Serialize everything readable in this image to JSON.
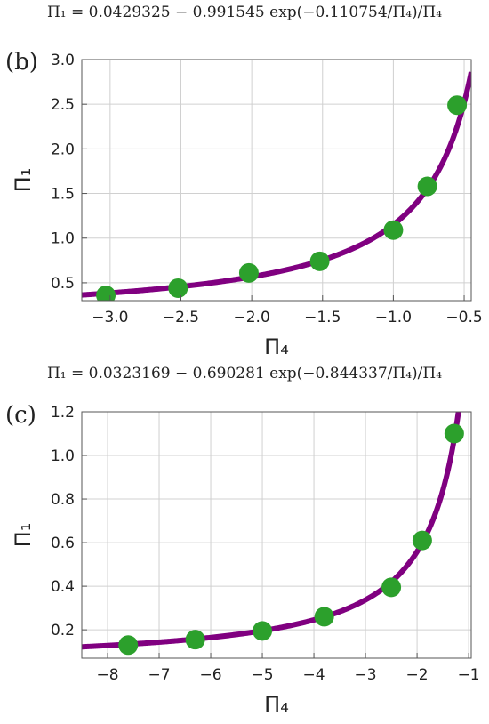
{
  "colors": {
    "curve": "#800080",
    "points": "#2ca02c",
    "grid": "#d0d0d0",
    "frame": "#555555"
  },
  "chart_data": [
    {
      "type": "scatter",
      "panel_label": "(b)",
      "title": "Π₁ = 0.0429325 − 0.991545 exp(−0.110754/Π₄)/Π₄",
      "xlabel": "Π₄",
      "ylabel": "Π₁",
      "xlim": [
        -3.2,
        -0.45
      ],
      "ylim": [
        0.3,
        3.0
      ],
      "xticks": [
        -3.0,
        -2.5,
        -2.0,
        -1.5,
        -1.0,
        -0.5
      ],
      "xtick_labels": [
        "−3.0",
        "−2.5",
        "−2.0",
        "−1.5",
        "−1.0",
        "−0.5"
      ],
      "yticks": [
        0.5,
        1.0,
        1.5,
        2.0,
        2.5,
        3.0
      ],
      "ytick_labels": [
        "0.5",
        "1.0",
        "1.5",
        "2.0",
        "2.5",
        "3.0"
      ],
      "grid": true,
      "fit": {
        "a": 0.0429325,
        "b": 0.991545,
        "c": 0.110754
      },
      "points": {
        "x": [
          -3.03,
          -2.52,
          -2.02,
          -1.52,
          -1.0,
          -0.76,
          -0.55
        ],
        "y": [
          0.36,
          0.44,
          0.61,
          0.74,
          1.09,
          1.58,
          2.49
        ]
      }
    },
    {
      "type": "scatter",
      "panel_label": "(c)",
      "title": "Π₁ = 0.0323169 − 0.690281 exp(−0.844337/Π₄)/Π₄",
      "xlabel": "Π₄",
      "ylabel": "Π₁",
      "xlim": [
        -8.5,
        -0.95
      ],
      "ylim": [
        0.07,
        1.2
      ],
      "xticks": [
        -8,
        -7,
        -6,
        -5,
        -4,
        -3,
        -2,
        -1
      ],
      "xtick_labels": [
        "−8",
        "−7",
        "−6",
        "−5",
        "−4",
        "−3",
        "−2",
        "−1"
      ],
      "yticks": [
        0.2,
        0.4,
        0.6,
        0.8,
        1.0,
        1.2
      ],
      "ytick_labels": [
        "0.2",
        "0.4",
        "0.6",
        "0.8",
        "1.0",
        "1.2"
      ],
      "grid": true,
      "fit": {
        "a": 0.0323169,
        "b": 0.690281,
        "c": 0.844337
      },
      "points": {
        "x": [
          -7.6,
          -6.3,
          -5.0,
          -3.8,
          -2.5,
          -1.9,
          -1.28
        ],
        "y": [
          0.13,
          0.155,
          0.195,
          0.26,
          0.395,
          0.61,
          1.1
        ]
      }
    }
  ]
}
